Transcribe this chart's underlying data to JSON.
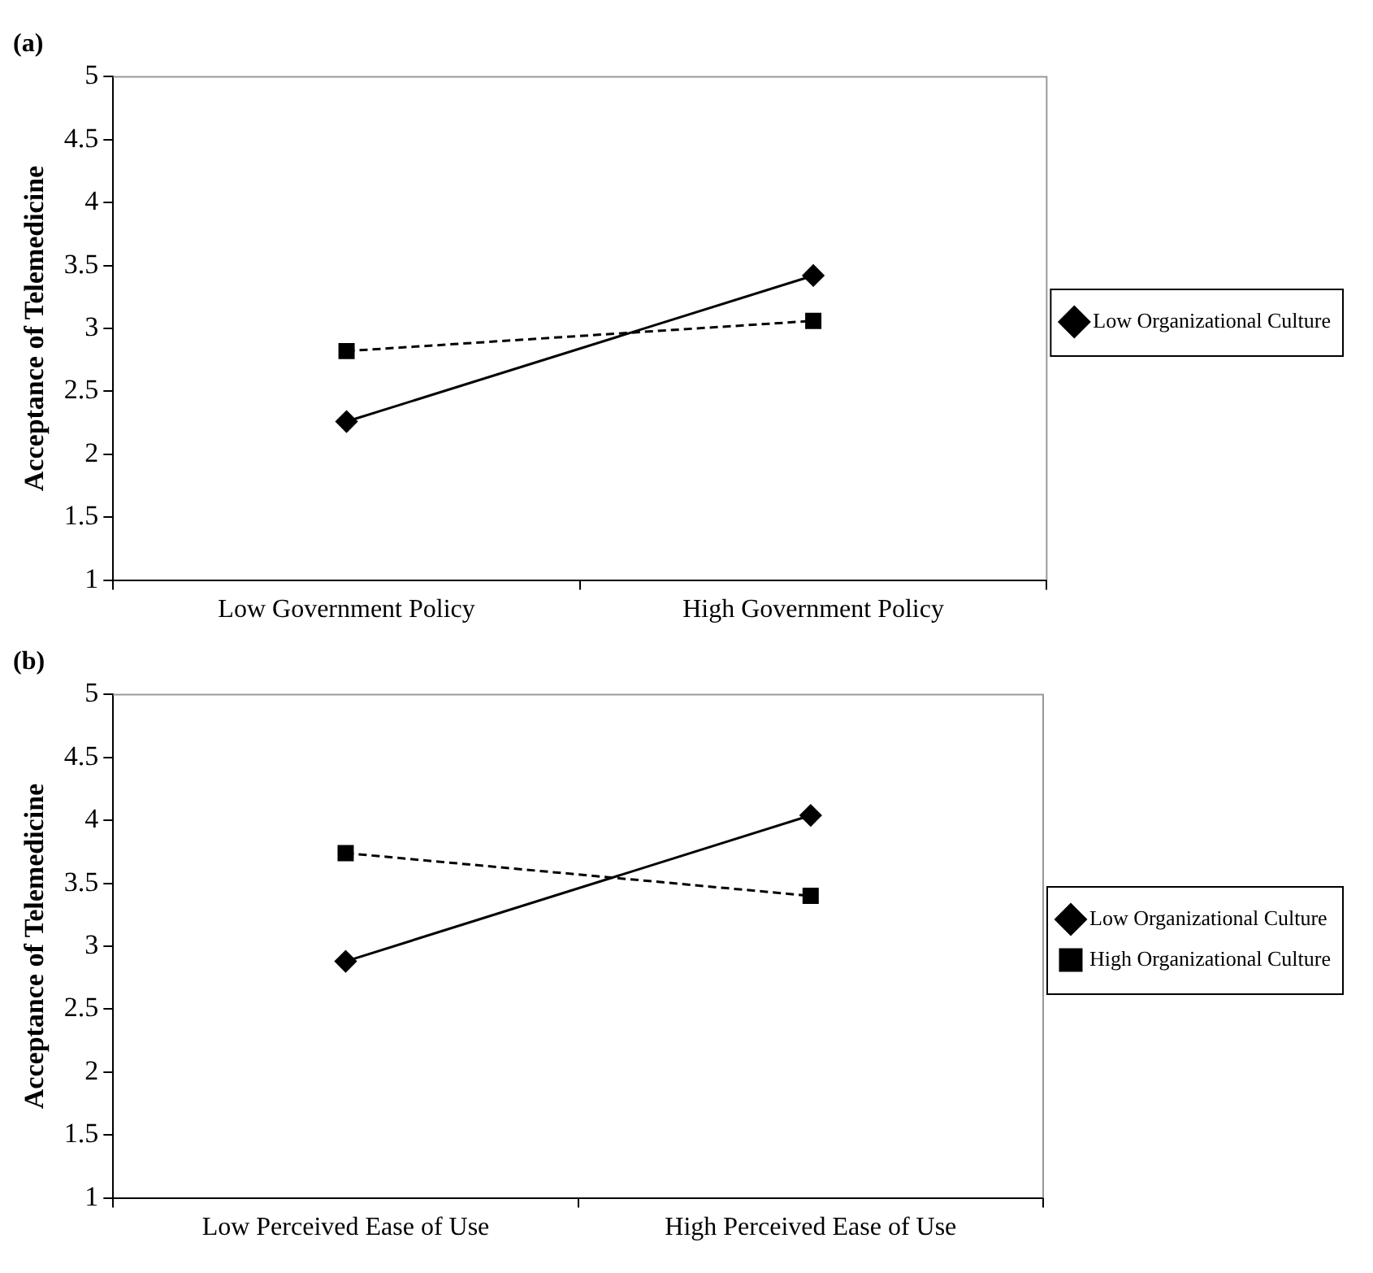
{
  "chart_data": [
    {
      "type": "line",
      "title": "(a)",
      "ylabel": "Acceptance of Telemedicine",
      "categories": [
        "Low Government Policy",
        "High Government Policy"
      ],
      "series": [
        {
          "name": "Low Organizational Culture",
          "color": "#000000",
          "values": [
            2.26,
            3.42
          ],
          "marker": "diamond",
          "line_style": "solid"
        },
        {
          "color": "#000000",
          "values": [
            2.82,
            3.06
          ],
          "marker": "square",
          "line_style": "dashed"
        }
      ],
      "ylim": [
        1,
        5
      ],
      "yticks": [
        1,
        1.5,
        2,
        2.5,
        3,
        3.5,
        4,
        4.5,
        5
      ],
      "grid": false,
      "legend": "right"
    },
    {
      "type": "line",
      "title": "(b)",
      "ylabel": "Acceptance of Telemedicine",
      "categories": [
        "Low Perceived Ease of Use",
        "High Perceived Ease of Use"
      ],
      "series": [
        {
          "name": "Low Organizational Culture",
          "color": "#000000",
          "values": [
            2.88,
            4.04
          ],
          "marker": "diamond",
          "line_style": "solid"
        },
        {
          "name": "High Organizational Culture",
          "color": "#000000",
          "values": [
            3.74,
            3.4
          ],
          "marker": "square",
          "line_style": "dashed"
        }
      ],
      "ylim": [
        1,
        5
      ],
      "yticks": [
        1,
        1.5,
        2,
        2.5,
        3,
        3.5,
        4,
        4.5,
        5
      ],
      "grid": false,
      "legend": "right"
    }
  ]
}
